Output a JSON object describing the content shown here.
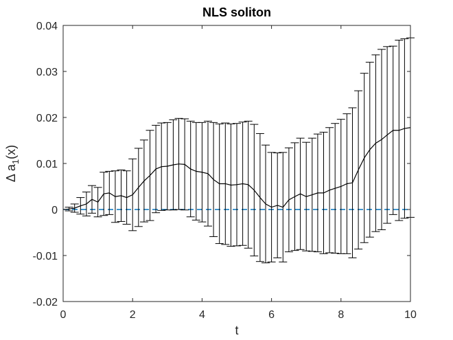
{
  "chart_data": {
    "type": "line",
    "title": "NLS soliton",
    "xlabel": "t",
    "ylabel": {
      "main": "Δ a",
      "sub": "1",
      "tail": "(x)"
    },
    "xlim": [
      0,
      10
    ],
    "ylim": [
      -0.02,
      0.04
    ],
    "xticks": [
      0,
      2,
      4,
      6,
      8,
      10
    ],
    "xtick_labels": [
      "0",
      "2",
      "4",
      "6",
      "8",
      "10"
    ],
    "yticks": [
      -0.02,
      -0.01,
      0,
      0.01,
      0.02,
      0.03,
      0.04
    ],
    "ytick_labels": [
      "-0.02",
      "-0.01",
      "0",
      "0.01",
      "0.02",
      "0.03",
      "0.04"
    ],
    "grid": false,
    "series": [
      {
        "style": "line-with-errorbars",
        "color": "#000000",
        "x": [
          0.0,
          0.17,
          0.33,
          0.5,
          0.67,
          0.83,
          1.0,
          1.17,
          1.33,
          1.5,
          1.67,
          1.83,
          2.0,
          2.17,
          2.33,
          2.5,
          2.67,
          2.83,
          3.0,
          3.17,
          3.33,
          3.5,
          3.67,
          3.83,
          4.0,
          4.17,
          4.33,
          4.5,
          4.67,
          4.83,
          5.0,
          5.17,
          5.33,
          5.5,
          5.67,
          5.83,
          6.0,
          6.17,
          6.33,
          6.5,
          6.67,
          6.83,
          7.0,
          7.17,
          7.33,
          7.5,
          7.67,
          7.83,
          8.0,
          8.17,
          8.33,
          8.5,
          8.67,
          8.83,
          9.0,
          9.17,
          9.33,
          9.5,
          9.67,
          9.83,
          10.0
        ],
        "y": [
          0.0,
          0.0001,
          0.0003,
          0.0008,
          0.0012,
          0.0022,
          0.0016,
          0.0034,
          0.0036,
          0.0028,
          0.003,
          0.0026,
          0.0032,
          0.0048,
          0.0062,
          0.0074,
          0.0088,
          0.0093,
          0.0094,
          0.0097,
          0.0099,
          0.0098,
          0.0088,
          0.0083,
          0.0081,
          0.0078,
          0.0065,
          0.0056,
          0.0056,
          0.0053,
          0.0054,
          0.0056,
          0.0054,
          0.0042,
          0.0026,
          0.0012,
          0.0005,
          0.0009,
          0.0005,
          0.0021,
          0.0028,
          0.0034,
          0.0028,
          0.0032,
          0.0036,
          0.0036,
          0.0042,
          0.0046,
          0.005,
          0.0056,
          0.0058,
          0.0086,
          0.0112,
          0.013,
          0.0144,
          0.0152,
          0.0162,
          0.0172,
          0.0172,
          0.0176,
          0.0178
        ],
        "err": [
          0.0,
          0.0004,
          0.0009,
          0.0018,
          0.0026,
          0.003,
          0.0032,
          0.0047,
          0.0047,
          0.0056,
          0.0056,
          0.0058,
          0.0078,
          0.0085,
          0.0089,
          0.0098,
          0.0095,
          0.0095,
          0.0095,
          0.0098,
          0.0099,
          0.0099,
          0.0104,
          0.0106,
          0.0108,
          0.0114,
          0.0124,
          0.013,
          0.0132,
          0.0133,
          0.0133,
          0.0134,
          0.0138,
          0.0143,
          0.0139,
          0.0128,
          0.0119,
          0.0114,
          0.0119,
          0.0113,
          0.0117,
          0.0121,
          0.0118,
          0.0123,
          0.0128,
          0.0132,
          0.0136,
          0.0141,
          0.0146,
          0.0152,
          0.0163,
          0.0172,
          0.0184,
          0.019,
          0.0192,
          0.0196,
          0.0192,
          0.0183,
          0.0196,
          0.0195,
          0.0195
        ]
      },
      {
        "style": "dashed",
        "color": "#0072bd",
        "x": [
          0,
          10
        ],
        "y": [
          0,
          0
        ]
      }
    ]
  }
}
